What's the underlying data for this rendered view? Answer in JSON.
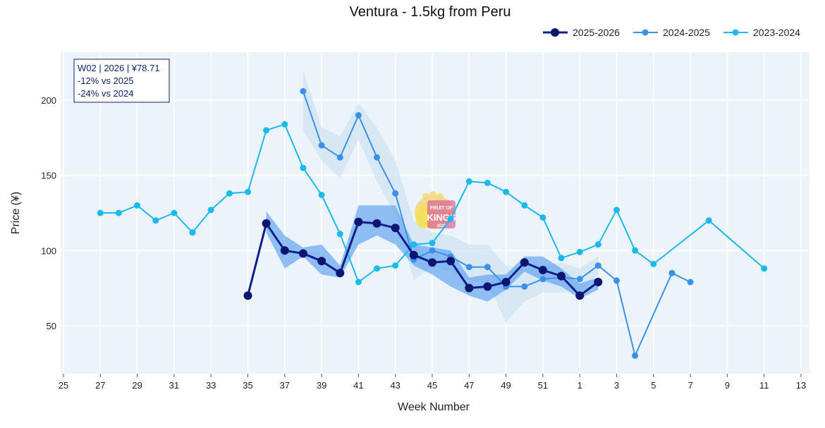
{
  "chart_data": {
    "type": "line",
    "title": "Ventura - 1.5kg from Peru",
    "xlabel": "Week Number",
    "ylabel": "Price (¥)",
    "ylim": [
      18,
      232
    ],
    "yticks": [
      50,
      100,
      150,
      200
    ],
    "week_order": [
      25,
      26,
      27,
      28,
      29,
      30,
      31,
      32,
      33,
      34,
      35,
      36,
      37,
      38,
      39,
      40,
      41,
      42,
      43,
      44,
      45,
      46,
      47,
      48,
      49,
      50,
      51,
      52,
      1,
      2,
      3,
      4,
      5,
      6,
      7,
      8,
      9,
      10,
      11,
      12,
      13
    ],
    "xtick_labels": [
      "25",
      "27",
      "29",
      "31",
      "33",
      "35",
      "37",
      "39",
      "41",
      "43",
      "45",
      "47",
      "49",
      "51",
      "1",
      "3",
      "5",
      "7",
      "9",
      "11",
      "13"
    ],
    "grid": true,
    "legend_position": "top-right",
    "series": [
      {
        "name": "2023-2024",
        "color": "#1ab9ee",
        "weeks": [
          27,
          28,
          29,
          30,
          31,
          32,
          33,
          34,
          35,
          36,
          37,
          38,
          39,
          40,
          41,
          42,
          43,
          44,
          45,
          46,
          47,
          48,
          49,
          50,
          51,
          52,
          1,
          2,
          3,
          4,
          5,
          8,
          11
        ],
        "values": [
          125,
          125,
          130,
          120,
          125,
          112,
          127,
          138,
          139,
          180,
          184,
          155,
          137,
          111,
          79,
          88,
          90,
          104,
          105,
          121,
          146,
          145,
          139,
          130,
          122,
          95,
          99,
          104,
          127,
          100,
          91,
          120,
          88
        ]
      },
      {
        "name": "2024-2025",
        "color": "#3a92e8",
        "weeks": [
          38,
          39,
          40,
          41,
          42,
          43,
          44,
          45,
          46,
          47,
          48,
          49,
          50,
          51,
          52,
          1,
          2,
          3,
          4,
          6,
          7
        ],
        "values": [
          206,
          170,
          162,
          190,
          162,
          138,
          94,
          100,
          96,
          89,
          89,
          76,
          76,
          81,
          82,
          81,
          90,
          80,
          30,
          85,
          79
        ],
        "band_weeks": [
          38,
          39,
          40,
          41,
          42,
          43,
          44,
          45,
          46,
          47,
          48,
          49,
          50,
          51,
          52,
          1,
          2
        ],
        "band_upper": [
          220,
          182,
          176,
          198,
          182,
          160,
          120,
          112,
          110,
          104,
          104,
          90,
          88,
          90,
          92,
          88,
          96
        ],
        "band_lower": [
          180,
          160,
          148,
          174,
          146,
          124,
          80,
          90,
          86,
          80,
          78,
          52,
          66,
          72,
          72,
          74,
          84
        ]
      },
      {
        "name": "2025-2026",
        "color": "#0f1f8c",
        "marker_color": "#0c1670",
        "weeks": [
          35,
          36,
          37,
          38,
          39,
          40,
          41,
          42,
          43,
          44,
          45,
          46,
          47,
          48,
          49,
          50,
          51,
          52,
          1,
          2
        ],
        "values": [
          70,
          118,
          100,
          98,
          93,
          85,
          119,
          118,
          115,
          97,
          92,
          93,
          75,
          76,
          79,
          92,
          87,
          83,
          70,
          79
        ],
        "band_weeks": [
          36,
          37,
          38,
          39,
          40,
          41,
          42,
          43,
          44,
          45,
          46,
          47,
          48,
          49,
          50,
          51,
          52,
          1,
          2
        ],
        "band_upper": [
          126,
          110,
          102,
          104,
          90,
          130,
          130,
          130,
          104,
          102,
          100,
          82,
          84,
          84,
          96,
          96,
          88,
          78,
          82
        ],
        "band_lower": [
          112,
          88,
          96,
          84,
          82,
          104,
          110,
          104,
          90,
          84,
          76,
          70,
          66,
          74,
          86,
          80,
          76,
          68,
          74
        ]
      }
    ]
  },
  "annotation": {
    "line1": "W02 | 2026 | ¥78.71",
    "line2": "-12% vs 2025",
    "line3": "-24% vs 2024"
  },
  "watermark": {
    "line1": "FRUIT OF",
    "line2": "KINGS",
    "line3": "2025"
  }
}
